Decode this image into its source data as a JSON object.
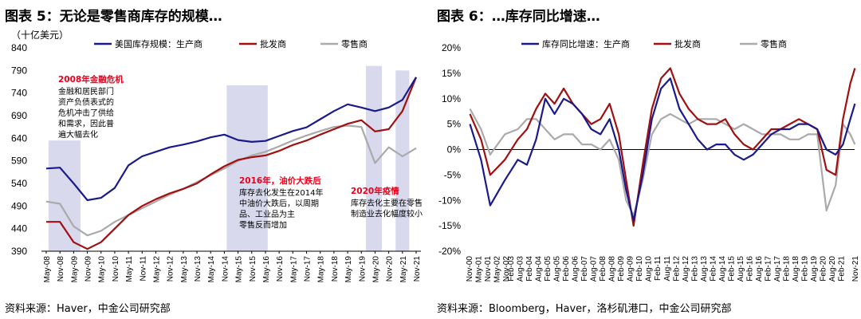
{
  "left": {
    "title": "图表 5：无论是零售商库存的规模…",
    "source": "资料来源：Haver，中金公司研究部",
    "chart_data": {
      "type": "line",
      "unit_label": "（十亿美元）",
      "ylim": [
        390,
        840
      ],
      "yticks": [
        390,
        440,
        490,
        540,
        590,
        640,
        690,
        740,
        790,
        840
      ],
      "xlim": [
        "May-08",
        "Nov-21"
      ],
      "xticks": [
        "May-08",
        "Nov-08",
        "May-09",
        "Nov-09",
        "May-10",
        "Nov-10",
        "May-11",
        "Nov-11",
        "May-12",
        "Nov-12",
        "May-13",
        "Nov-13",
        "May-14",
        "Nov-14",
        "May-15",
        "Nov-15",
        "May-16",
        "Nov-16",
        "May-17",
        "Nov-17",
        "May-18",
        "Nov-18",
        "May-19",
        "Nov-19",
        "May-20",
        "Nov-20",
        "May-21",
        "Nov-21"
      ],
      "series": [
        {
          "name": "美国库存规模：生产商",
          "color": "#1a1a8c",
          "x": [
            "May-08",
            "Nov-08",
            "May-09",
            "Nov-09",
            "May-10",
            "Nov-10",
            "May-11",
            "Nov-11",
            "May-12",
            "Nov-12",
            "May-13",
            "Nov-13",
            "May-14",
            "Nov-14",
            "May-15",
            "Nov-15",
            "May-16",
            "Nov-16",
            "May-17",
            "Nov-17",
            "May-18",
            "Nov-18",
            "May-19",
            "Nov-19",
            "May-20",
            "Nov-20",
            "May-21",
            "Nov-21"
          ],
          "values": [
            573,
            575,
            540,
            503,
            508,
            530,
            580,
            600,
            610,
            620,
            626,
            633,
            642,
            648,
            636,
            632,
            634,
            645,
            656,
            664,
            682,
            700,
            715,
            708,
            700,
            708,
            725,
            775
          ]
        },
        {
          "name": "批发商",
          "color": "#a01010",
          "x": [
            "May-08",
            "Nov-08",
            "May-09",
            "Nov-09",
            "May-10",
            "Nov-10",
            "May-11",
            "Nov-11",
            "May-12",
            "Nov-12",
            "May-13",
            "Nov-13",
            "May-14",
            "Nov-14",
            "May-15",
            "Nov-15",
            "May-16",
            "Nov-16",
            "May-17",
            "Nov-17",
            "May-18",
            "Nov-18",
            "May-19",
            "Nov-19",
            "May-20",
            "Nov-20",
            "May-21",
            "Nov-21"
          ],
          "values": [
            455,
            455,
            410,
            395,
            410,
            440,
            470,
            490,
            505,
            518,
            528,
            540,
            560,
            578,
            592,
            598,
            602,
            612,
            625,
            635,
            648,
            660,
            672,
            680,
            655,
            660,
            700,
            775
          ]
        },
        {
          "name": "零售商",
          "color": "#aaaaaa",
          "x": [
            "May-08",
            "Nov-08",
            "May-09",
            "Nov-09",
            "May-10",
            "Nov-10",
            "May-11",
            "Nov-11",
            "May-12",
            "Nov-12",
            "May-13",
            "Nov-13",
            "May-14",
            "Nov-14",
            "May-15",
            "Nov-15",
            "May-16",
            "Nov-16",
            "May-17",
            "Nov-17",
            "May-18",
            "Nov-18",
            "May-19",
            "Nov-19",
            "May-20",
            "Nov-20",
            "May-21",
            "Nov-21"
          ],
          "values": [
            500,
            495,
            445,
            425,
            435,
            455,
            470,
            485,
            500,
            515,
            528,
            543,
            558,
            573,
            590,
            602,
            610,
            622,
            635,
            646,
            656,
            665,
            668,
            665,
            585,
            620,
            600,
            618
          ]
        }
      ],
      "shaded_periods": [
        [
          "Jun-08",
          "Aug-09"
        ],
        [
          "Dec-14",
          "Jun-16"
        ],
        [
          "Jan-20",
          "Aug-20"
        ],
        [
          "Feb-21",
          "Aug-21"
        ]
      ],
      "annotations": [
        {
          "title": "2008年金融危机",
          "lines": [
            "金融和居民部门",
            "资产负债表式的",
            "危机冲击了供给",
            "和需求，因此普",
            "遍大幅去化"
          ]
        },
        {
          "title": "2016年，油价大跌后",
          "lines": [
            "库存去化发生在2014年",
            "中油价大跌后，以周期",
            "品、工业品为主",
            "零售反而增加"
          ]
        },
        {
          "title": "2020年疫情",
          "lines": [
            "库存去化主要在零售",
            "制造业去化幅度较小"
          ]
        }
      ]
    }
  },
  "right": {
    "title": "图表 6：…库存同比增速…",
    "source": "资料来源：Bloomberg，Haver，洛杉矶港口，中金公司研究部",
    "chart_data": {
      "type": "line",
      "ylim": [
        -20,
        20
      ],
      "yticks": [
        "20%",
        "15%",
        "10%",
        "5%",
        "0%",
        "-5%",
        "-10%",
        "-15%",
        "-20%"
      ],
      "xlim": [
        "Nov-00",
        "Nov-21"
      ],
      "xticks": [
        "Nov-00",
        "May-01",
        "Nov-01",
        "May-02",
        "Nov-02",
        "Feb-03",
        "Aug-03",
        "Feb-04",
        "Aug-04",
        "Feb-05",
        "Aug-05",
        "Feb-06",
        "Aug-06",
        "Feb-07",
        "Aug-07",
        "Feb-08",
        "Aug-08",
        "Feb-09",
        "Aug-09",
        "Feb-10",
        "Aug-10",
        "Feb-11",
        "Aug-11",
        "Feb-12",
        "Aug-12",
        "Feb-13",
        "Aug-13",
        "Feb-14",
        "Aug-14",
        "Feb-15",
        "Aug-15",
        "Feb-16",
        "Aug-16",
        "Feb-17",
        "Aug-17",
        "Feb-18",
        "Aug-18",
        "Feb-19",
        "Aug-19",
        "Feb-20",
        "Aug-20",
        "Feb-21",
        "Nov-21"
      ],
      "series": [
        {
          "name": "库存同比增速：生产商",
          "color": "#1a1a8c",
          "x": [
            2000.9,
            2001.5,
            2002.0,
            2002.8,
            2003.5,
            2004.0,
            2004.5,
            2005.0,
            2005.5,
            2006.0,
            2006.5,
            2007.0,
            2007.5,
            2008.0,
            2008.5,
            2009.0,
            2009.4,
            2009.8,
            2010.3,
            2010.8,
            2011.3,
            2011.8,
            2012.3,
            2012.8,
            2013.3,
            2013.8,
            2014.3,
            2014.8,
            2015.3,
            2015.8,
            2016.3,
            2016.8,
            2017.3,
            2017.8,
            2018.3,
            2018.8,
            2019.3,
            2019.8,
            2020.3,
            2020.8,
            2021.2,
            2021.6,
            2021.85
          ],
          "values": [
            5,
            -2,
            -11,
            -6,
            -2,
            -3,
            2,
            10,
            7,
            10,
            9,
            7,
            4,
            3,
            6,
            0,
            -8,
            -14,
            -5,
            6,
            12,
            14,
            8,
            5,
            2,
            0,
            1,
            1,
            -1,
            -2,
            -1,
            1,
            3,
            4,
            4,
            5,
            5,
            4,
            0,
            -1,
            1,
            6,
            9
          ]
        },
        {
          "name": "批发商",
          "color": "#a01010",
          "x": [
            2000.9,
            2001.5,
            2002.0,
            2002.8,
            2003.5,
            2004.0,
            2004.5,
            2005.0,
            2005.5,
            2006.0,
            2006.5,
            2007.0,
            2007.5,
            2008.0,
            2008.5,
            2009.0,
            2009.4,
            2009.8,
            2010.3,
            2010.8,
            2011.3,
            2011.8,
            2012.3,
            2012.8,
            2013.3,
            2013.8,
            2014.3,
            2014.8,
            2015.3,
            2015.8,
            2016.3,
            2016.8,
            2017.3,
            2017.8,
            2018.3,
            2018.8,
            2019.3,
            2019.8,
            2020.3,
            2020.8,
            2021.2,
            2021.6,
            2021.85
          ],
          "values": [
            7,
            2,
            -5,
            -2,
            2,
            4,
            8,
            11,
            9,
            12,
            9,
            7,
            5,
            6,
            9,
            3,
            -6,
            -15,
            -3,
            8,
            14,
            16,
            11,
            8,
            6,
            5,
            5,
            6,
            3,
            1,
            0,
            2,
            4,
            4,
            5,
            6,
            5,
            4,
            -4,
            -5,
            6,
            13,
            16
          ]
        },
        {
          "name": "零售商",
          "color": "#aaaaaa",
          "x": [
            2000.9,
            2001.5,
            2002.0,
            2002.8,
            2003.5,
            2004.0,
            2004.5,
            2005.0,
            2005.5,
            2006.0,
            2006.5,
            2007.0,
            2007.5,
            2008.0,
            2008.5,
            2009.0,
            2009.4,
            2009.8,
            2010.3,
            2010.8,
            2011.3,
            2011.8,
            2012.3,
            2012.8,
            2013.3,
            2013.8,
            2014.3,
            2014.8,
            2015.3,
            2015.8,
            2016.3,
            2016.8,
            2017.3,
            2017.8,
            2018.3,
            2018.8,
            2019.3,
            2019.8,
            2020.3,
            2020.8,
            2021.2,
            2021.6,
            2021.85
          ],
          "values": [
            8,
            4,
            -1,
            3,
            4,
            6,
            6,
            4,
            2,
            3,
            3,
            1,
            1,
            0,
            2,
            -2,
            -10,
            -13,
            -6,
            3,
            6,
            7,
            6,
            5,
            6,
            6,
            6,
            5,
            4,
            5,
            4,
            3,
            3,
            3,
            2,
            2,
            3,
            3,
            -12,
            -7,
            5,
            3,
            1
          ]
        }
      ]
    }
  }
}
